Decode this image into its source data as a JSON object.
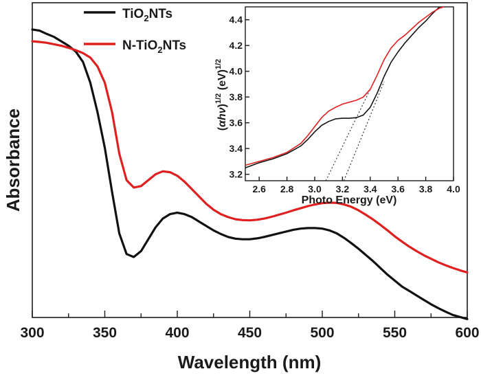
{
  "chart_data": [
    {
      "type": "line",
      "xlabel": "Wavelength (nm)",
      "ylabel": "Absorbance",
      "xlim": [
        300,
        600
      ],
      "xticks": [
        300,
        350,
        400,
        450,
        500,
        550,
        600
      ],
      "yticks": false,
      "legend_position": "top-left",
      "series": [
        {
          "name": "TiO2NTs",
          "legend": {
            "pre": "TiO",
            "sub": "2",
            "post": "NTs"
          },
          "color": "#111111",
          "x": [
            300,
            305,
            310,
            315,
            320,
            325,
            330,
            335,
            340,
            345,
            350,
            355,
            360,
            365,
            370,
            375,
            380,
            385,
            390,
            395,
            400,
            405,
            410,
            415,
            420,
            425,
            430,
            435,
            440,
            445,
            450,
            455,
            460,
            465,
            470,
            475,
            480,
            485,
            490,
            495,
            500,
            505,
            510,
            515,
            520,
            525,
            530,
            535,
            540,
            545,
            550,
            555,
            560,
            565,
            570,
            575,
            580,
            585,
            590,
            595,
            600
          ],
          "y": [
            0.97,
            0.966,
            0.955,
            0.945,
            0.93,
            0.915,
            0.895,
            0.86,
            0.79,
            0.69,
            0.57,
            0.42,
            0.28,
            0.21,
            0.2,
            0.22,
            0.26,
            0.3,
            0.33,
            0.345,
            0.35,
            0.345,
            0.335,
            0.32,
            0.305,
            0.29,
            0.278,
            0.268,
            0.262,
            0.26,
            0.26,
            0.263,
            0.268,
            0.274,
            0.28,
            0.286,
            0.292,
            0.296,
            0.298,
            0.298,
            0.296,
            0.29,
            0.28,
            0.265,
            0.247,
            0.228,
            0.207,
            0.186,
            0.163,
            0.14,
            0.12,
            0.1,
            0.085,
            0.07,
            0.055,
            0.04,
            0.027,
            0.015,
            0.004,
            -0.003,
            -0.01
          ]
        },
        {
          "name": "N-TiO2NTs",
          "legend": {
            "pre": "N-TiO",
            "sub": "2",
            "post": "NTs"
          },
          "color": "#e02020",
          "x": [
            300,
            305,
            310,
            315,
            320,
            325,
            330,
            335,
            340,
            345,
            350,
            355,
            360,
            365,
            370,
            375,
            380,
            385,
            390,
            395,
            400,
            405,
            410,
            415,
            420,
            425,
            430,
            435,
            440,
            445,
            450,
            455,
            460,
            465,
            470,
            475,
            480,
            485,
            490,
            495,
            500,
            505,
            510,
            515,
            520,
            525,
            530,
            535,
            540,
            545,
            550,
            555,
            560,
            565,
            570,
            575,
            580,
            585,
            590,
            595,
            600
          ],
          "y": [
            0.93,
            0.928,
            0.925,
            0.92,
            0.915,
            0.908,
            0.9,
            0.89,
            0.875,
            0.845,
            0.79,
            0.69,
            0.55,
            0.46,
            0.435,
            0.44,
            0.46,
            0.48,
            0.49,
            0.487,
            0.475,
            0.455,
            0.43,
            0.405,
            0.38,
            0.36,
            0.345,
            0.335,
            0.328,
            0.325,
            0.324,
            0.326,
            0.33,
            0.336,
            0.343,
            0.35,
            0.358,
            0.365,
            0.372,
            0.378,
            0.382,
            0.384,
            0.383,
            0.378,
            0.37,
            0.358,
            0.343,
            0.327,
            0.309,
            0.29,
            0.27,
            0.252,
            0.235,
            0.22,
            0.206,
            0.194,
            0.182,
            0.172,
            0.163,
            0.155,
            0.148
          ]
        }
      ]
    },
    {
      "type": "line",
      "xlabel": "Photo Energy (eV)",
      "ylabel": {
        "pre": "(",
        "alpha": "α",
        "mid": "h",
        "nu": "ν",
        "close": ")",
        "exp1": "1/2",
        "unit": " (eV)",
        "exp2": "1/2"
      },
      "xlim": [
        2.5,
        4.0
      ],
      "ylim": [
        3.15,
        4.5
      ],
      "xticks": [
        2.6,
        2.8,
        3.0,
        3.2,
        3.4,
        3.6,
        3.8,
        4.0
      ],
      "yticks": [
        3.2,
        3.4,
        3.6,
        3.8,
        4.0,
        4.2,
        4.4
      ],
      "series": [
        {
          "name": "TiO2NTs",
          "color": "#111111",
          "x": [
            2.5,
            2.6,
            2.7,
            2.8,
            2.9,
            2.95,
            3.0,
            3.05,
            3.1,
            3.15,
            3.2,
            3.25,
            3.3,
            3.35,
            3.4,
            3.45,
            3.5,
            3.55,
            3.6,
            3.65,
            3.7,
            3.75,
            3.8,
            3.85,
            3.9
          ],
          "y": [
            3.25,
            3.29,
            3.32,
            3.36,
            3.42,
            3.47,
            3.53,
            3.58,
            3.61,
            3.63,
            3.635,
            3.635,
            3.64,
            3.66,
            3.72,
            3.83,
            3.96,
            4.07,
            4.15,
            4.22,
            4.28,
            4.34,
            4.39,
            4.45,
            4.5
          ]
        },
        {
          "name": "N-TiO2NTs",
          "color": "#e02020",
          "x": [
            2.5,
            2.6,
            2.7,
            2.8,
            2.9,
            2.95,
            3.0,
            3.05,
            3.1,
            3.15,
            3.2,
            3.25,
            3.3,
            3.35,
            3.4,
            3.45,
            3.5,
            3.55,
            3.6,
            3.65,
            3.7,
            3.75,
            3.8,
            3.85,
            3.9,
            3.93
          ],
          "y": [
            3.27,
            3.3,
            3.33,
            3.37,
            3.44,
            3.5,
            3.57,
            3.64,
            3.69,
            3.72,
            3.745,
            3.76,
            3.775,
            3.8,
            3.86,
            3.97,
            4.09,
            4.18,
            4.24,
            4.28,
            4.33,
            4.38,
            4.42,
            4.46,
            4.49,
            4.5
          ]
        }
      ],
      "tangent_lines": [
        {
          "x": [
            3.08,
            3.4
          ],
          "y": [
            3.15,
            3.86
          ]
        },
        {
          "x": [
            3.21,
            3.5
          ],
          "y": [
            3.15,
            3.92
          ]
        }
      ]
    }
  ]
}
